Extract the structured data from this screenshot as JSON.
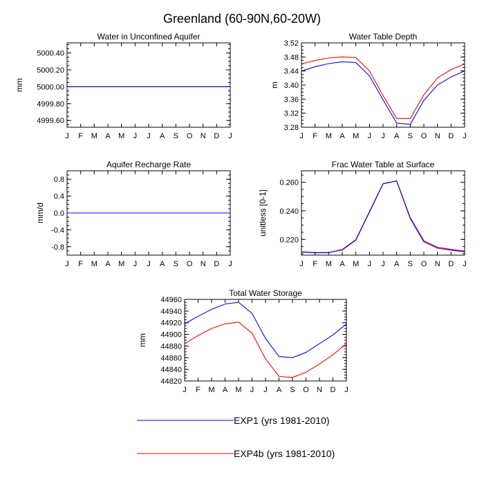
{
  "title": "Greenland (60-90N,60-20W)",
  "colors": {
    "exp1": "#0000ff",
    "exp4b": "#ff0000",
    "axis": "#000000"
  },
  "legend": {
    "entries": [
      {
        "label": "EXP1 (yrs 1981-2010)",
        "color": "#0000ff"
      },
      {
        "label": "EXP4b (yrs 1981-2010)",
        "color": "#ff0000"
      }
    ]
  },
  "chart_data": [
    {
      "id": "wa",
      "type": "line",
      "title": "Water in Unconfined Aquifer",
      "ylabel": "mm",
      "ylim": [
        4999.52,
        5000.52
      ],
      "yticks": [
        4999.6,
        4999.8,
        5000.0,
        5000.2,
        5000.4
      ],
      "ytick_labels": [
        "4999.60",
        "4999.80",
        "5000.00",
        "5000.20",
        "5000.40"
      ],
      "yminor": 0.05,
      "categories": [
        "J",
        "F",
        "M",
        "A",
        "M",
        "J",
        "J",
        "A",
        "S",
        "O",
        "N",
        "D",
        "J"
      ],
      "series": [
        {
          "name": "EXP1 (yrs 1981-2010)",
          "color": "#0000ff",
          "values": [
            5000,
            5000,
            5000,
            5000,
            5000,
            5000,
            5000,
            5000,
            5000,
            5000,
            5000,
            5000,
            5000
          ]
        },
        {
          "name": "EXP4b (yrs 1981-2010)",
          "color": "#ff0000",
          "values": [
            5000,
            5000,
            5000,
            5000,
            5000,
            5000,
            5000,
            5000,
            5000,
            5000,
            5000,
            5000,
            5000
          ]
        }
      ]
    },
    {
      "id": "wt",
      "type": "line",
      "title": "Water Table Depth",
      "ylabel": "m",
      "ylim": [
        3.28,
        3.52
      ],
      "yticks": [
        3.28,
        3.32,
        3.36,
        3.4,
        3.44,
        3.48,
        3.52
      ],
      "ytick_labels": [
        "3.28",
        "3.32",
        "3.36",
        "3.40",
        "3.44",
        "3.48",
        "3.52"
      ],
      "yminor": 0.01,
      "categories": [
        "J",
        "F",
        "M",
        "A",
        "M",
        "J",
        "J",
        "A",
        "S",
        "O",
        "N",
        "D",
        "J"
      ],
      "series": [
        {
          "name": "EXP1 (yrs 1981-2010)",
          "color": "#0000ff",
          "values": [
            3.44,
            3.452,
            3.461,
            3.466,
            3.464,
            3.426,
            3.358,
            3.292,
            3.288,
            3.356,
            3.4,
            3.423,
            3.44
          ]
        },
        {
          "name": "EXP4b (yrs 1981-2010)",
          "color": "#ff0000",
          "values": [
            3.46,
            3.47,
            3.477,
            3.48,
            3.478,
            3.44,
            3.37,
            3.305,
            3.305,
            3.372,
            3.42,
            3.444,
            3.46
          ]
        }
      ]
    },
    {
      "id": "qcharge",
      "type": "line",
      "title": "Aquifer Recharge Rate",
      "ylabel": "mm/d",
      "ylim": [
        -1.0,
        1.0
      ],
      "yticks": [
        -0.8,
        -0.4,
        0.0,
        0.4,
        0.8
      ],
      "ytick_labels": [
        "-0.8",
        "-0.4",
        "0.0",
        "0.4",
        "0.8"
      ],
      "yminor": 0.1,
      "categories": [
        "J",
        "F",
        "M",
        "A",
        "M",
        "J",
        "J",
        "A",
        "S",
        "O",
        "N",
        "D",
        "J"
      ],
      "series": [
        {
          "name": "EXP1 (yrs 1981-2010)",
          "color": "#0000ff",
          "values": [
            0,
            0,
            0,
            0,
            0,
            0,
            0,
            0,
            0,
            0,
            0,
            0,
            0
          ]
        },
        {
          "name": "EXP4b (yrs 1981-2010)",
          "color": "#ff0000",
          "values": [
            0,
            0,
            0,
            0,
            0,
            0,
            0,
            0,
            0,
            0,
            0,
            0,
            0
          ]
        }
      ]
    },
    {
      "id": "frac",
      "type": "line",
      "title": "Frac Water Table at Surface",
      "ylabel": "unitless [0-1]",
      "ylim": [
        0.209,
        0.268
      ],
      "yticks": [
        0.22,
        0.24,
        0.26
      ],
      "ytick_labels": [
        "0.220",
        "0.240",
        "0.260"
      ],
      "yminor": 0.005,
      "categories": [
        "J",
        "F",
        "M",
        "A",
        "M",
        "J",
        "J",
        "A",
        "S",
        "O",
        "N",
        "D",
        "J"
      ],
      "series": [
        {
          "name": "EXP1 (yrs 1981-2010)",
          "color": "#0000ff",
          "values": [
            0.2112,
            0.2106,
            0.2107,
            0.2129,
            0.2198,
            0.2395,
            0.259,
            0.261,
            0.2352,
            0.219,
            0.2145,
            0.213,
            0.2118
          ]
        },
        {
          "name": "EXP4b (yrs 1981-2010)",
          "color": "#ff0000",
          "values": [
            0.2114,
            0.2108,
            0.2109,
            0.2126,
            0.2194,
            0.239,
            0.2588,
            0.2608,
            0.2345,
            0.2182,
            0.2138,
            0.2124,
            0.2112
          ]
        }
      ]
    },
    {
      "id": "tws",
      "type": "line",
      "title": "Total Water Storage",
      "ylabel": "mm",
      "ylim": [
        44820,
        44960
      ],
      "yticks": [
        44820,
        44840,
        44860,
        44880,
        44900,
        44920,
        44940,
        44960
      ],
      "ytick_labels": [
        "44820",
        "44840",
        "44860",
        "44880",
        "44900",
        "44920",
        "44940",
        "44960"
      ],
      "yminor": 5,
      "categories": [
        "J",
        "F",
        "M",
        "A",
        "M",
        "J",
        "J",
        "A",
        "S",
        "O",
        "N",
        "D",
        "J"
      ],
      "series": [
        {
          "name": "EXP1 (yrs 1981-2010)",
          "color": "#0000ff",
          "values": [
            44918,
            44931,
            44943,
            44952,
            44955,
            44936,
            44893,
            44862,
            44860,
            44869,
            44884,
            44899,
            44918
          ]
        },
        {
          "name": "EXP4b (yrs 1981-2010)",
          "color": "#ff0000",
          "values": [
            44884,
            44898,
            44910,
            44918,
            44921,
            44902,
            44858,
            44828,
            44826,
            44835,
            44849,
            44865,
            44884
          ]
        }
      ]
    }
  ]
}
